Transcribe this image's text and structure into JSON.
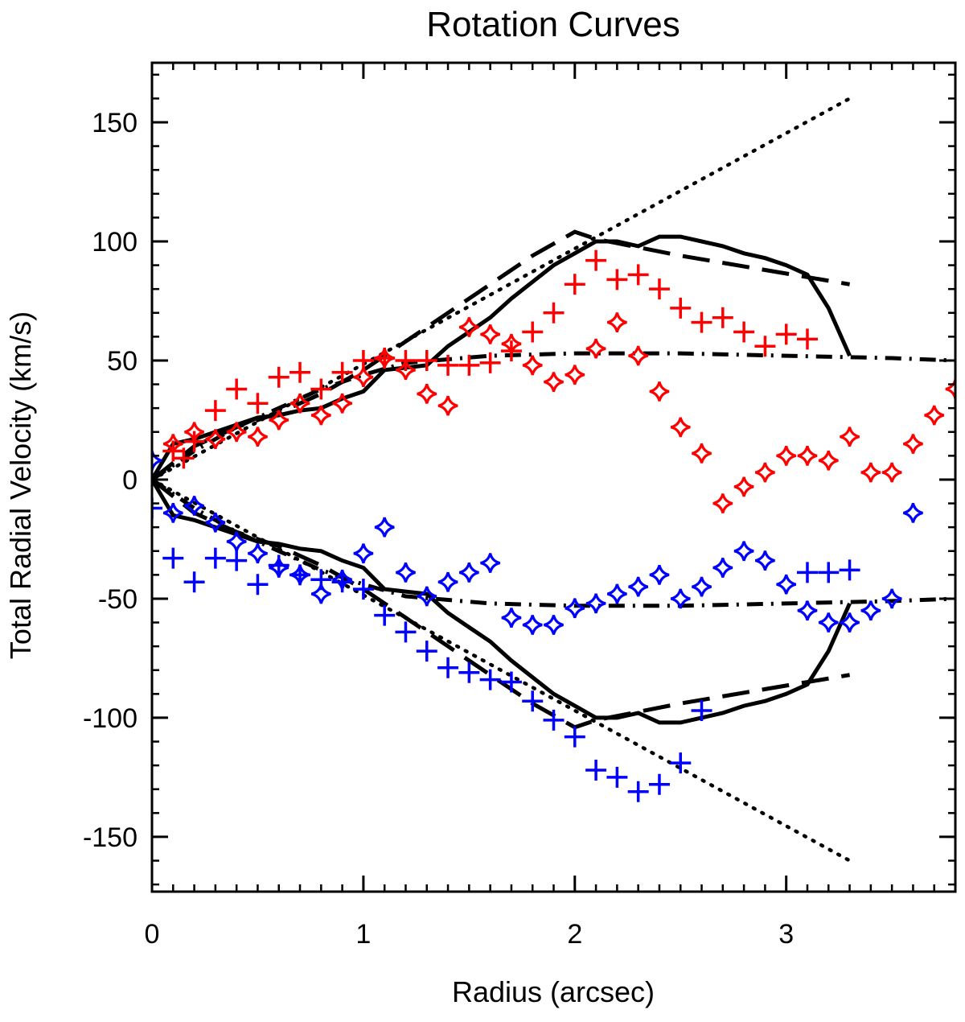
{
  "chart_data": {
    "type": "line",
    "title": "Rotation Curves",
    "xlabel": "Radius (arcsec)",
    "ylabel": "Total Radial Velocity (km/s)",
    "xlim": [
      0,
      3.8
    ],
    "ylim": [
      -173,
      175
    ],
    "x_ticks": [
      0,
      1,
      2,
      3
    ],
    "y_ticks": [
      -150,
      -100,
      -50,
      0,
      50,
      100,
      150
    ],
    "x_tick_labels": [
      "0",
      "1",
      "2",
      "3"
    ],
    "y_tick_labels": [
      "-150",
      "-100",
      "-50",
      "0",
      "50",
      "100",
      "150"
    ],
    "colors": {
      "red": "#ff0000",
      "blue": "#0000ff",
      "black": "#000000"
    },
    "series": [
      {
        "name": "solid-upper",
        "style": "solid",
        "color": "#000000",
        "x": [
          0,
          0.1,
          0.2,
          0.3,
          0.4,
          0.5,
          0.6,
          0.7,
          0.8,
          0.9,
          1.0,
          1.1,
          1.2,
          1.3,
          1.4,
          1.5,
          1.6,
          1.7,
          1.8,
          1.9,
          2.0,
          2.1,
          2.2,
          2.3,
          2.4,
          2.5,
          2.6,
          2.7,
          2.8,
          2.9,
          3.0,
          3.1,
          3.2,
          3.3
        ],
        "y": [
          0,
          15,
          17,
          20,
          23,
          26,
          27,
          29,
          30,
          34,
          37,
          46,
          47,
          48,
          56,
          62,
          68,
          76,
          83,
          90,
          95,
          100,
          100,
          98,
          102,
          102,
          100,
          98,
          95,
          93,
          90,
          86,
          72,
          52
        ]
      },
      {
        "name": "solid-lower",
        "style": "solid",
        "color": "#000000",
        "x": [
          0,
          0.1,
          0.2,
          0.3,
          0.4,
          0.5,
          0.6,
          0.7,
          0.8,
          0.9,
          1.0,
          1.1,
          1.2,
          1.3,
          1.4,
          1.5,
          1.6,
          1.7,
          1.8,
          1.9,
          2.0,
          2.1,
          2.2,
          2.3,
          2.4,
          2.5,
          2.6,
          2.7,
          2.8,
          2.9,
          3.0,
          3.1,
          3.2,
          3.3
        ],
        "y": [
          0,
          -15,
          -17,
          -20,
          -23,
          -26,
          -27,
          -29,
          -30,
          -34,
          -37,
          -46,
          -47,
          -48,
          -56,
          -62,
          -68,
          -76,
          -83,
          -90,
          -95,
          -100,
          -100,
          -98,
          -102,
          -102,
          -100,
          -98,
          -95,
          -93,
          -90,
          -86,
          -72,
          -52
        ]
      },
      {
        "name": "dashed-upper",
        "style": "dashed",
        "color": "#000000",
        "x": [
          0,
          0.2,
          0.4,
          0.6,
          0.8,
          1.0,
          1.2,
          1.4,
          1.6,
          1.8,
          2.0,
          2.1,
          2.5,
          2.9,
          3.3
        ],
        "y": [
          0,
          14,
          22,
          28,
          36,
          46,
          58,
          70,
          82,
          94,
          104,
          101,
          94,
          88,
          82
        ]
      },
      {
        "name": "dashed-lower",
        "style": "dashed",
        "color": "#000000",
        "x": [
          0,
          0.2,
          0.4,
          0.6,
          0.8,
          1.0,
          1.2,
          1.4,
          1.6,
          1.8,
          2.0,
          2.1,
          2.5,
          2.9,
          3.3
        ],
        "y": [
          0,
          -14,
          -22,
          -28,
          -36,
          -46,
          -58,
          -70,
          -82,
          -94,
          -104,
          -101,
          -94,
          -88,
          -82
        ]
      },
      {
        "name": "dotted-upper",
        "style": "dotted",
        "color": "#000000",
        "x": [
          0,
          3.3
        ],
        "y": [
          0,
          160
        ]
      },
      {
        "name": "dotted-lower",
        "style": "dotted",
        "color": "#000000",
        "x": [
          0,
          3.3
        ],
        "y": [
          0,
          -160
        ]
      },
      {
        "name": "dashdot-upper",
        "style": "dashdot",
        "color": "#000000",
        "x": [
          0,
          0.2,
          0.4,
          0.6,
          0.8,
          1.0,
          1.2,
          1.6,
          2.0,
          2.5,
          3.0,
          3.5,
          3.8
        ],
        "y": [
          0,
          12,
          22,
          30,
          38,
          44,
          49,
          52,
          53,
          53,
          52,
          51,
          50
        ]
      },
      {
        "name": "dashdot-lower",
        "style": "dashdot",
        "color": "#000000",
        "x": [
          0,
          0.2,
          0.4,
          0.6,
          0.8,
          1.0,
          1.2,
          1.6,
          2.0,
          2.5,
          3.0,
          3.5,
          3.8
        ],
        "y": [
          0,
          -12,
          -22,
          -30,
          -38,
          -44,
          -49,
          -52,
          -53,
          -53,
          -52,
          -51,
          -50
        ]
      },
      {
        "name": "red-plus",
        "style": "plus",
        "color": "#ff0000",
        "x": [
          0.1,
          0.15,
          0.2,
          0.3,
          0.4,
          0.5,
          0.6,
          0.7,
          0.8,
          0.9,
          1.0,
          1.1,
          1.2,
          1.3,
          1.4,
          1.5,
          1.6,
          1.7,
          1.8,
          1.9,
          2.0,
          2.1,
          2.2,
          2.3,
          2.4,
          2.5,
          2.6,
          2.7,
          2.8,
          2.9,
          3.0,
          3.1
        ],
        "y": [
          12,
          9,
          16,
          29,
          38,
          32,
          43,
          45,
          38,
          45,
          50,
          51,
          50,
          50,
          48,
          48,
          49,
          54,
          62,
          70,
          82,
          92,
          84,
          86,
          80,
          72,
          66,
          68,
          62,
          56,
          61,
          59
        ]
      },
      {
        "name": "red-star",
        "style": "star",
        "color": "#ff0000",
        "x": [
          0.1,
          0.2,
          0.3,
          0.4,
          0.5,
          0.6,
          0.7,
          0.8,
          0.9,
          1.0,
          1.1,
          1.2,
          1.3,
          1.4,
          1.5,
          1.6,
          1.7,
          1.8,
          1.9,
          2.0,
          2.1,
          2.2,
          2.3,
          2.4,
          2.5,
          2.6,
          2.7,
          2.8,
          2.9,
          3.0,
          3.1,
          3.2,
          3.3,
          3.4,
          3.5,
          3.6,
          3.7,
          3.8
        ],
        "y": [
          15,
          20,
          17,
          20,
          18,
          25,
          32,
          27,
          32,
          43,
          51,
          46,
          36,
          31,
          64,
          61,
          57,
          48,
          41,
          44,
          55,
          66,
          52,
          37,
          22,
          11,
          -10,
          -3,
          3,
          10,
          10,
          8,
          18,
          3,
          3,
          15,
          27,
          38
        ]
      },
      {
        "name": "blue-plus",
        "style": "plus",
        "color": "#0000ff",
        "x": [
          0,
          0.1,
          0.2,
          0.3,
          0.4,
          0.5,
          0.6,
          0.7,
          0.8,
          0.9,
          1.0,
          1.1,
          1.2,
          1.3,
          1.4,
          1.5,
          1.6,
          1.7,
          1.8,
          1.9,
          2.0,
          2.1,
          2.2,
          2.3,
          2.4,
          2.5,
          2.6,
          3.1,
          3.2,
          3.3
        ],
        "y": [
          -12,
          -33,
          -43,
          -33,
          -34,
          -44,
          -36,
          -40,
          -42,
          -43,
          -46,
          -57,
          -64,
          -72,
          -79,
          -81,
          -84,
          -85,
          -93,
          -101,
          -108,
          -122,
          -125,
          -131,
          -128,
          -119,
          -97,
          -39,
          -39,
          -38
        ]
      },
      {
        "name": "blue-star",
        "style": "star",
        "color": "#0000ff",
        "x": [
          0,
          0.1,
          0.2,
          0.3,
          0.4,
          0.5,
          0.6,
          0.7,
          0.8,
          0.9,
          1.0,
          1.1,
          1.2,
          1.3,
          1.4,
          1.5,
          1.6,
          1.7,
          1.8,
          1.9,
          2.0,
          2.1,
          2.2,
          2.3,
          2.4,
          2.5,
          2.6,
          2.7,
          2.8,
          2.9,
          3.0,
          3.1,
          3.2,
          3.3,
          3.4,
          3.5,
          3.6
        ],
        "y": [
          8,
          -14,
          -11,
          -18,
          -26,
          -31,
          -37,
          -40,
          -48,
          -42,
          -31,
          -20,
          -39,
          -49,
          -43,
          -39,
          -35,
          -58,
          -61,
          -61,
          -54,
          -52,
          -48,
          -45,
          -40,
          -50,
          -45,
          -37,
          -30,
          -34,
          -44,
          -55,
          -60,
          -60,
          -55,
          -50,
          -14
        ]
      }
    ]
  }
}
